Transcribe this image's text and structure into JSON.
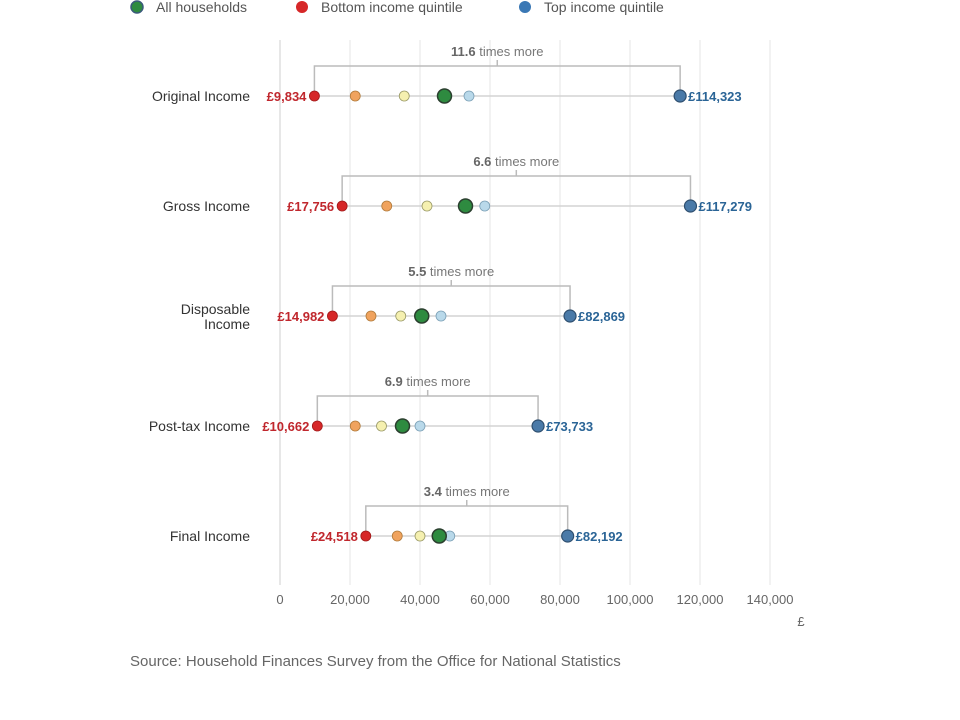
{
  "legend": [
    {
      "label": "All households",
      "color": "#2e8b40",
      "stroke": "#3a5a7a"
    },
    {
      "label": "Bottom income quintile",
      "color": "#d62728"
    },
    {
      "label": "Top income quintile",
      "color": "#3a78b5"
    }
  ],
  "source": "Source: Household Finances Survey from the Office for National Statistics",
  "chart_data": {
    "type": "scatter",
    "subtype": "dot-plot",
    "x_unit_label": "£",
    "xlim": [
      0,
      140000
    ],
    "xticks": [
      0,
      20000,
      40000,
      60000,
      80000,
      100000,
      120000,
      140000
    ],
    "xtick_labels": [
      "0",
      "20,000",
      "40,000",
      "60,000",
      "80,000",
      "100,000",
      "120,000",
      "140,000"
    ],
    "grid": "vertical",
    "legend_position": "top",
    "quintile_colors": [
      "#d62728",
      "#f0a35e",
      "#f5f0b0",
      "#b9d9ea",
      "#4a7aa8"
    ],
    "all_color": "#2e8b40",
    "rows": [
      {
        "label": "Original Income",
        "low": 9834,
        "q2": 21500,
        "q3": 35500,
        "q4": 54000,
        "high": 114323,
        "all": 47000,
        "low_label": "£9,834",
        "high_label": "£114,323",
        "ratio": "11.6",
        "ratio_text": "times more"
      },
      {
        "label": "Gross Income",
        "low": 17756,
        "q2": 30500,
        "q3": 42000,
        "q4": 58500,
        "high": 117279,
        "all": 53000,
        "low_label": "£17,756",
        "high_label": "£117,279",
        "ratio": "6.6",
        "ratio_text": "times more"
      },
      {
        "label": "Disposable Income",
        "low": 14982,
        "q2": 26000,
        "q3": 34500,
        "q4": 46000,
        "high": 82869,
        "all": 40500,
        "low_label": "£14,982",
        "high_label": "£82,869",
        "ratio": "5.5",
        "ratio_text": "times more"
      },
      {
        "label": "Post-tax Income",
        "low": 10662,
        "q2": 21500,
        "q3": 29000,
        "q4": 40000,
        "high": 73733,
        "all": 35000,
        "low_label": "£10,662",
        "high_label": "£73,733",
        "ratio": "6.9",
        "ratio_text": "times more"
      },
      {
        "label": "Final Income",
        "low": 24518,
        "q2": 33500,
        "q3": 40000,
        "q4": 48500,
        "high": 82192,
        "all": 45500,
        "low_label": "£24,518",
        "high_label": "£82,192",
        "ratio": "3.4",
        "ratio_text": "times more"
      }
    ]
  }
}
